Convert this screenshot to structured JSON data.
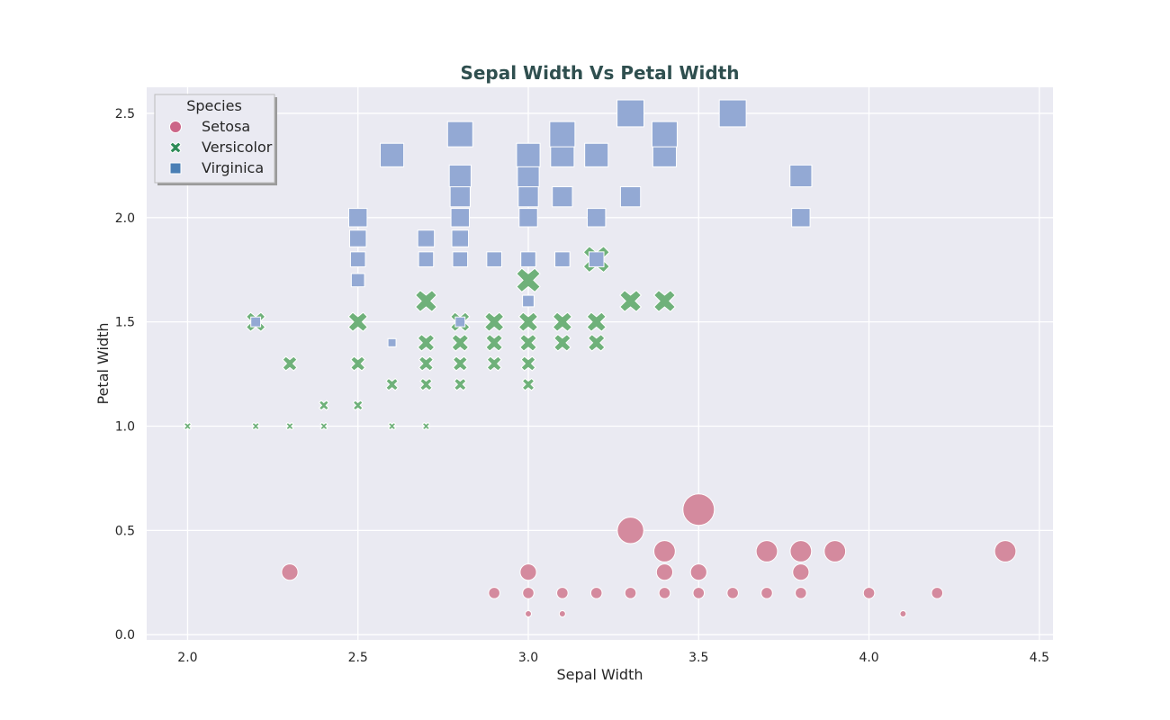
{
  "chart_data": {
    "type": "scatter",
    "title": "Sepal Width Vs Petal Width",
    "xlabel": "Sepal Width",
    "ylabel": "Petal Width",
    "xlim": [
      1.88,
      4.54
    ],
    "ylim": [
      -0.025,
      2.625
    ],
    "xticks": [
      "2.0",
      "2.5",
      "3.0",
      "3.5",
      "4.0",
      "4.5"
    ],
    "xtick_values": [
      2.0,
      2.5,
      3.0,
      3.5,
      4.0,
      4.5
    ],
    "yticks": [
      "0.0",
      "0.5",
      "1.0",
      "1.5",
      "2.0",
      "2.5"
    ],
    "ytick_values": [
      0.0,
      0.5,
      1.0,
      1.5,
      2.0,
      2.5
    ],
    "grid": true,
    "legend": {
      "title": "Species",
      "placement": "top-left",
      "entries": [
        {
          "label": "Setosa",
          "marker": "circle",
          "color": "#cc6688"
        },
        {
          "label": "Versicolor",
          "marker": "x",
          "color": "#2e8b57"
        },
        {
          "label": "Virginica",
          "marker": "square",
          "color": "#4a7fb5"
        }
      ]
    },
    "series": [
      {
        "name": "Setosa",
        "marker": "circle",
        "color": "#d48a9e",
        "points": [
          [
            3.0,
            0.1,
            1
          ],
          [
            3.1,
            0.1,
            1
          ],
          [
            4.1,
            0.1,
            1
          ],
          [
            2.9,
            0.2,
            2
          ],
          [
            3.0,
            0.2,
            2
          ],
          [
            3.1,
            0.2,
            2
          ],
          [
            3.2,
            0.2,
            2
          ],
          [
            3.3,
            0.2,
            2
          ],
          [
            3.4,
            0.2,
            2
          ],
          [
            3.5,
            0.2,
            2
          ],
          [
            3.6,
            0.2,
            2
          ],
          [
            3.7,
            0.2,
            2
          ],
          [
            3.8,
            0.2,
            2
          ],
          [
            4.0,
            0.2,
            2
          ],
          [
            4.2,
            0.2,
            2
          ],
          [
            2.3,
            0.3,
            3
          ],
          [
            3.0,
            0.3,
            3
          ],
          [
            3.4,
            0.3,
            3
          ],
          [
            3.5,
            0.3,
            3
          ],
          [
            3.8,
            0.3,
            3
          ],
          [
            3.4,
            0.4,
            4
          ],
          [
            3.7,
            0.4,
            4
          ],
          [
            3.8,
            0.4,
            4
          ],
          [
            3.9,
            0.4,
            4
          ],
          [
            4.4,
            0.4,
            4
          ],
          [
            3.3,
            0.5,
            5
          ],
          [
            3.5,
            0.6,
            6
          ]
        ]
      },
      {
        "name": "Versicolor",
        "marker": "x",
        "color": "#6fb17a",
        "points": [
          [
            2.0,
            1.0,
            1
          ],
          [
            2.2,
            1.0,
            1
          ],
          [
            2.3,
            1.0,
            1
          ],
          [
            2.4,
            1.0,
            1
          ],
          [
            2.6,
            1.0,
            1
          ],
          [
            2.7,
            1.0,
            1
          ],
          [
            2.4,
            1.1,
            2
          ],
          [
            2.5,
            1.1,
            2
          ],
          [
            2.6,
            1.2,
            3
          ],
          [
            2.7,
            1.2,
            3
          ],
          [
            2.8,
            1.2,
            3
          ],
          [
            3.0,
            1.2,
            3
          ],
          [
            2.3,
            1.3,
            4
          ],
          [
            2.5,
            1.3,
            4
          ],
          [
            2.7,
            1.3,
            4
          ],
          [
            2.8,
            1.3,
            4
          ],
          [
            2.9,
            1.3,
            4
          ],
          [
            3.0,
            1.3,
            4
          ],
          [
            2.7,
            1.4,
            5
          ],
          [
            2.8,
            1.4,
            5
          ],
          [
            2.9,
            1.4,
            5
          ],
          [
            3.0,
            1.4,
            5
          ],
          [
            3.1,
            1.4,
            5
          ],
          [
            3.2,
            1.4,
            5
          ],
          [
            2.2,
            1.5,
            6
          ],
          [
            2.5,
            1.5,
            6
          ],
          [
            2.8,
            1.5,
            6
          ],
          [
            2.9,
            1.5,
            6
          ],
          [
            3.0,
            1.5,
            6
          ],
          [
            3.1,
            1.5,
            6
          ],
          [
            3.2,
            1.5,
            6
          ],
          [
            2.7,
            1.6,
            7
          ],
          [
            3.3,
            1.6,
            7
          ],
          [
            3.4,
            1.6,
            7
          ],
          [
            3.0,
            1.7,
            8
          ],
          [
            3.2,
            1.8,
            9
          ]
        ]
      },
      {
        "name": "Virginica",
        "marker": "square",
        "color": "#93a9d4",
        "points": [
          [
            2.6,
            1.4,
            1
          ],
          [
            2.2,
            1.5,
            2
          ],
          [
            2.8,
            1.5,
            2
          ],
          [
            3.0,
            1.6,
            3
          ],
          [
            2.5,
            1.7,
            4
          ],
          [
            2.5,
            1.8,
            5
          ],
          [
            2.7,
            1.8,
            5
          ],
          [
            2.8,
            1.8,
            5
          ],
          [
            2.9,
            1.8,
            5
          ],
          [
            3.0,
            1.8,
            5
          ],
          [
            3.1,
            1.8,
            5
          ],
          [
            3.2,
            1.8,
            5
          ],
          [
            2.5,
            1.9,
            6
          ],
          [
            2.7,
            1.9,
            6
          ],
          [
            2.8,
            1.9,
            6
          ],
          [
            2.5,
            2.0,
            7
          ],
          [
            2.8,
            2.0,
            7
          ],
          [
            3.0,
            2.0,
            7
          ],
          [
            3.2,
            2.0,
            7
          ],
          [
            3.8,
            2.0,
            7
          ],
          [
            2.8,
            2.1,
            8
          ],
          [
            3.0,
            2.1,
            8
          ],
          [
            3.1,
            2.1,
            8
          ],
          [
            3.3,
            2.1,
            8
          ],
          [
            2.8,
            2.2,
            9
          ],
          [
            3.0,
            2.2,
            9
          ],
          [
            3.8,
            2.2,
            9
          ],
          [
            2.6,
            2.3,
            10
          ],
          [
            3.0,
            2.3,
            10
          ],
          [
            3.1,
            2.3,
            10
          ],
          [
            3.2,
            2.3,
            10
          ],
          [
            3.4,
            2.3,
            10
          ],
          [
            2.8,
            2.4,
            11
          ],
          [
            3.1,
            2.4,
            11
          ],
          [
            3.4,
            2.4,
            11
          ],
          [
            3.3,
            2.5,
            12
          ],
          [
            3.6,
            2.5,
            12
          ]
        ]
      }
    ]
  }
}
